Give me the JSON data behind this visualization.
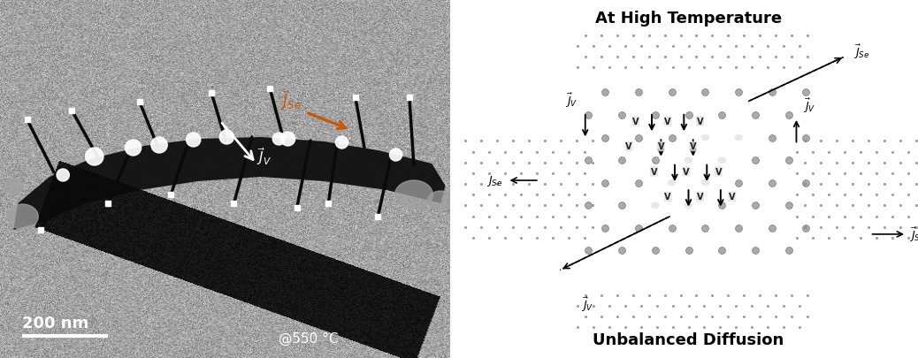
{
  "fig_width": 10.38,
  "fig_height": 4.06,
  "left_panel": {
    "bg_color": "#7a7a7a",
    "scale_bar_text": "200 nm",
    "temp_text": "@550 °C",
    "jse_color": "#cc5500",
    "jv_color": "#ffffff"
  },
  "right_panel": {
    "bg_color": "#ffffff",
    "title": "At High Temperature",
    "subtitle": "Unbalanced Diffusion",
    "title_fontsize": 13,
    "subtitle_fontsize": 13,
    "pt_color": "#aaaaaa",
    "se_color": "#88aa00",
    "vacancy_color": "#dddddd"
  }
}
